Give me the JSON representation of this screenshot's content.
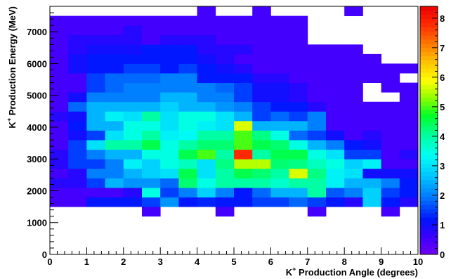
{
  "chart_data": {
    "type": "heatmap",
    "xlabel_prefix": "K",
    "xlabel_sup": "+",
    "xlabel_suffix": " Production Angle (degrees)",
    "ylabel_prefix": "K",
    "ylabel_sup": "+",
    "ylabel_suffix": " Production Energy (MeV)",
    "xlim": [
      0,
      10
    ],
    "ylim": [
      0,
      7800
    ],
    "zlim": [
      0,
      8.4
    ],
    "x_bin_width": 0.5,
    "y_bin_width": 300,
    "x_ticks": [
      0,
      1,
      2,
      3,
      4,
      5,
      6,
      7,
      8,
      9,
      10
    ],
    "x_tick_labels": [
      "0",
      "1",
      "2",
      "3",
      "4",
      "5",
      "6",
      "7",
      "8",
      "9",
      "10"
    ],
    "y_ticks": [
      0,
      1000,
      2000,
      3000,
      4000,
      5000,
      6000,
      7000
    ],
    "y_tick_labels": [
      "0",
      "1000",
      "2000",
      "3000",
      "4000",
      "5000",
      "6000",
      "7000"
    ],
    "z_ticks": [
      0,
      1,
      2,
      3,
      4,
      5,
      6,
      7,
      8
    ],
    "z_tick_labels": [
      "0",
      "1",
      "2",
      "3",
      "4",
      "5",
      "6",
      "7",
      "8"
    ],
    "legend": "color-scale-right",
    "colors": {
      "frame": "#000000",
      "background": "#ffffff"
    },
    "y_row_starts": [
      1200,
      1500,
      1800,
      2100,
      2400,
      2700,
      3000,
      3300,
      3600,
      3900,
      4200,
      4500,
      4800,
      5100,
      5400,
      5700,
      6000,
      6300,
      6600,
      6900,
      7200,
      7500
    ],
    "rows": [
      [
        0,
        0,
        0,
        0,
        0,
        0.5,
        0,
        0,
        0,
        0.5,
        0,
        0,
        0,
        0,
        0.5,
        0,
        0,
        0,
        0.5,
        0
      ],
      [
        0.5,
        0.5,
        1.2,
        1.2,
        1.2,
        1.5,
        2.2,
        1.2,
        1.3,
        1.2,
        1.2,
        1.5,
        1.5,
        1.8,
        1.5,
        1.2,
        0.8,
        2.8,
        1.2,
        0.8
      ],
      [
        0.5,
        0.5,
        0.5,
        0.5,
        0.8,
        3.5,
        1.5,
        2.0,
        2.8,
        2.0,
        1.2,
        1.8,
        2.5,
        2.5,
        4.0,
        1.7,
        2.0,
        2.8,
        1.5,
        1.2
      ],
      [
        0.8,
        0.8,
        1.5,
        2.5,
        2.2,
        2.2,
        1.8,
        4.3,
        3.5,
        4.0,
        4.0,
        4.0,
        3.7,
        4.0,
        4.0,
        3.2,
        2.5,
        2.5,
        2.0,
        1.2
      ],
      [
        0.5,
        0.8,
        2.0,
        2.0,
        2.5,
        2.8,
        3.0,
        4.5,
        3.0,
        4.0,
        4.5,
        4.3,
        4.0,
        5.7,
        4.2,
        3.2,
        3.0,
        1.0,
        1.0,
        1.0
      ],
      [
        0.8,
        1.5,
        1.5,
        2.0,
        3.2,
        2.8,
        3.5,
        3.8,
        3.0,
        4.2,
        5.5,
        5.5,
        4.3,
        4.2,
        3.8,
        3.5,
        2.8,
        3.2,
        0.5,
        0.5
      ],
      [
        0.8,
        1.5,
        2.0,
        2.5,
        2.5,
        3.5,
        3.5,
        4.5,
        5.0,
        4.0,
        7.8,
        4.0,
        4.5,
        4.5,
        3.5,
        3.0,
        1.5,
        1.5,
        0.5,
        0.8
      ],
      [
        0.5,
        1.5,
        3.0,
        4.0,
        4.0,
        4.5,
        3.5,
        4.0,
        4.3,
        4.3,
        5.0,
        4.5,
        4.3,
        3.5,
        2.5,
        2.0,
        1.2,
        1.0,
        0.5,
        0.5
      ],
      [
        0.5,
        1.0,
        1.5,
        3.0,
        3.5,
        4.0,
        3.2,
        3.3,
        4.0,
        4.0,
        5.0,
        4.2,
        3.5,
        1.8,
        1.5,
        1.0,
        0.5,
        0.8,
        0.5,
        0.5
      ],
      [
        0.5,
        1.2,
        2.5,
        2.5,
        3.5,
        3.5,
        3.0,
        3.5,
        3.2,
        3.0,
        5.7,
        2.5,
        2.5,
        2.5,
        2.0,
        0.5,
        0.5,
        0.5,
        0.5,
        0.5
      ],
      [
        0.8,
        1.0,
        2.5,
        3.2,
        3.0,
        4.0,
        3.0,
        3.5,
        3.5,
        3.0,
        2.5,
        1.5,
        1.8,
        1.5,
        2.0,
        0.5,
        0.5,
        0.5,
        0.5,
        0.5
      ],
      [
        0.5,
        1.8,
        2.5,
        2.5,
        2.5,
        2.5,
        2.8,
        2.5,
        2.5,
        2.2,
        2.0,
        1.5,
        1.2,
        1.2,
        0.8,
        0.5,
        0.5,
        0.5,
        0.5,
        0.5
      ],
      [
        0.5,
        1.0,
        2.0,
        2.0,
        2.0,
        2.0,
        2.5,
        2.5,
        2.0,
        2.0,
        1.5,
        1.0,
        1.0,
        0.8,
        0.5,
        0.5,
        0.5,
        0,
        0,
        0.5
      ],
      [
        0.5,
        0.5,
        1.5,
        1.8,
        2.0,
        2.0,
        2.0,
        2.0,
        2.0,
        1.8,
        1.5,
        1.0,
        1.0,
        0.8,
        0.5,
        0.5,
        0.5,
        0,
        0.5,
        0.5
      ],
      [
        0.5,
        0.5,
        1.5,
        1.8,
        1.8,
        1.8,
        2.0,
        2.0,
        1.2,
        1.2,
        1.2,
        0.8,
        0.8,
        0.5,
        0.5,
        0.5,
        0.5,
        0.5,
        0.5,
        0
      ],
      [
        0.5,
        1.0,
        1.2,
        1.2,
        1.5,
        1.5,
        1.2,
        1.5,
        1.2,
        1.0,
        0.8,
        0.5,
        0.5,
        0.5,
        0.5,
        0.5,
        0.5,
        0.5,
        0.5,
        0.5
      ],
      [
        0.5,
        1.0,
        1.2,
        1.2,
        1.2,
        1.2,
        1.2,
        1.2,
        1.0,
        0.8,
        0.5,
        0.5,
        0.5,
        0.5,
        0.5,
        0.5,
        0.5,
        0.5,
        0,
        0
      ],
      [
        0.5,
        0.8,
        1.0,
        1.0,
        1.0,
        1.2,
        1.2,
        1.2,
        0.8,
        0.8,
        0.8,
        0.5,
        0.5,
        0.5,
        0.5,
        0.5,
        0.5,
        0,
        0,
        0
      ],
      [
        0.5,
        0.8,
        0.8,
        0.8,
        0.8,
        0.5,
        0.8,
        0.8,
        0.8,
        0.5,
        0.5,
        0.5,
        0.5,
        0.5,
        0,
        0,
        0,
        0,
        0,
        0
      ],
      [
        0.5,
        0.5,
        0.5,
        0.5,
        0.8,
        0.5,
        0.5,
        0.5,
        0.5,
        0.5,
        0.5,
        0.5,
        0.5,
        0.5,
        0,
        0,
        0,
        0,
        0,
        0
      ],
      [
        0.5,
        0.5,
        0.5,
        0.5,
        0.5,
        0.5,
        0.5,
        0.5,
        0.5,
        0.5,
        0.5,
        0.5,
        0.5,
        0.5,
        0,
        0,
        0,
        0,
        0,
        0
      ],
      [
        0,
        0,
        0,
        0,
        0,
        0,
        0,
        0,
        0.5,
        0,
        0,
        0.5,
        0,
        0,
        0,
        0,
        0.5,
        0,
        0,
        0
      ]
    ]
  }
}
